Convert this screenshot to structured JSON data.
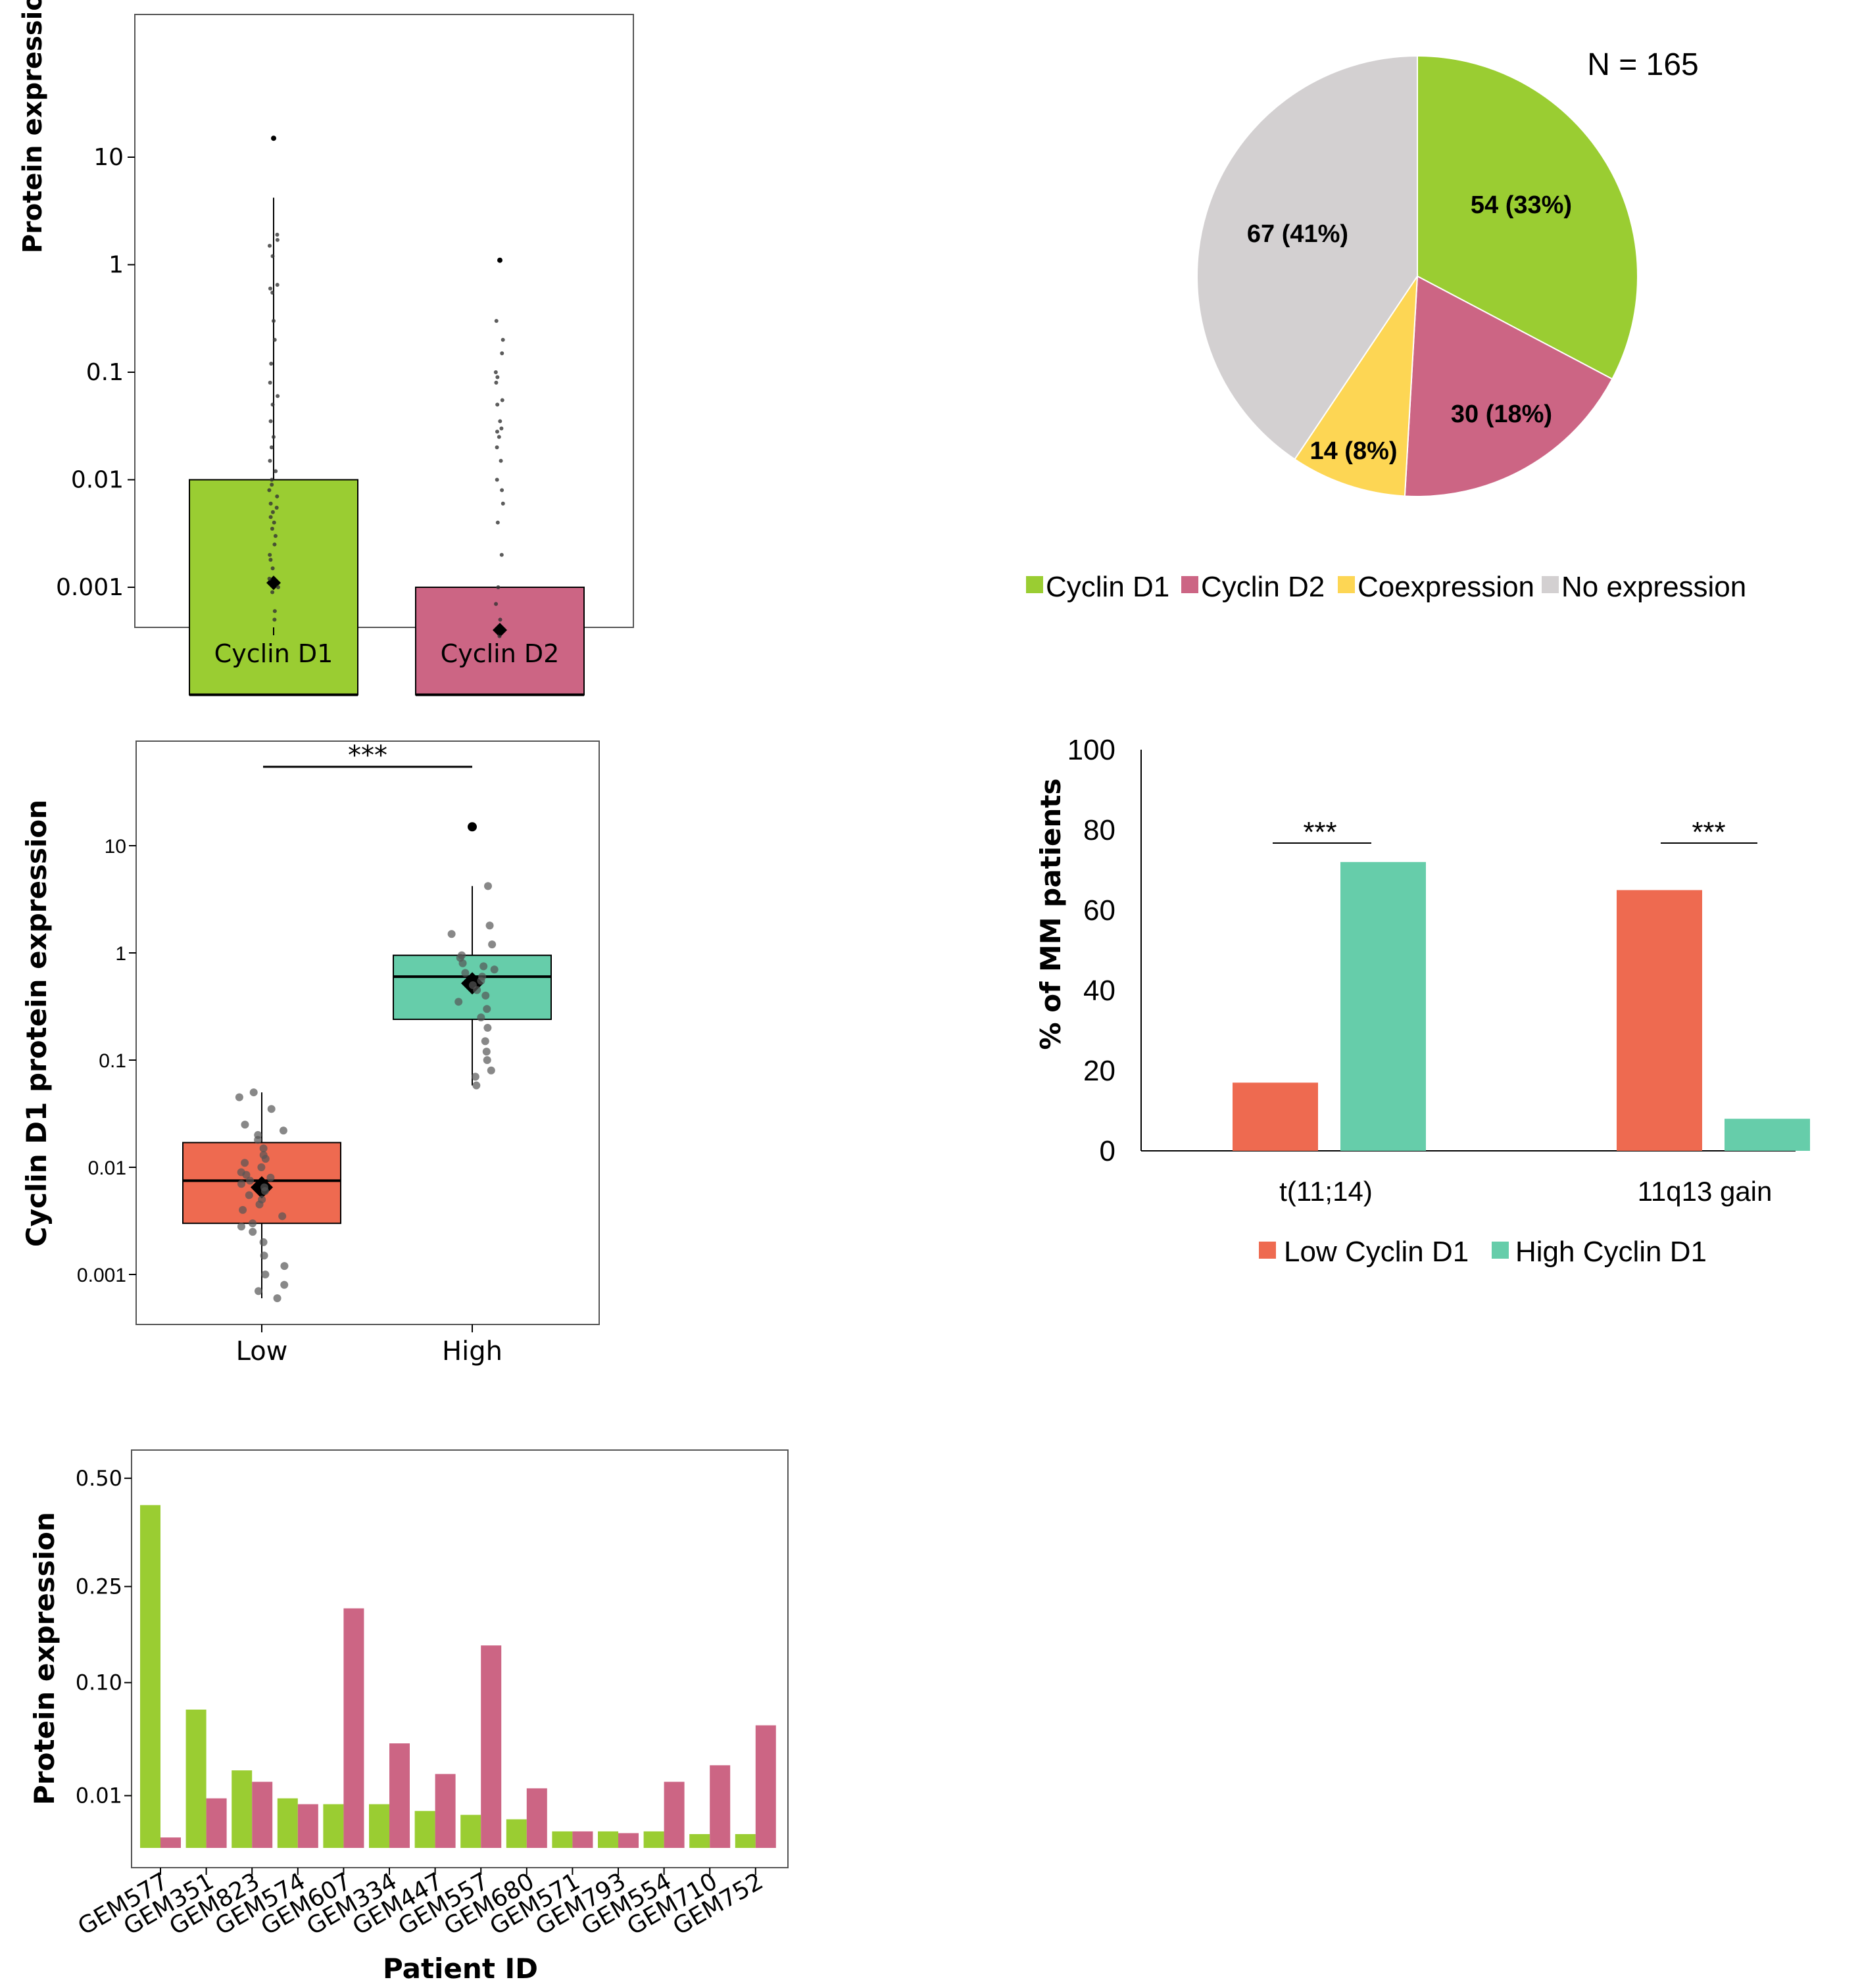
{
  "colors": {
    "green": "#9ACD32",
    "pink": "#CC6584",
    "yellow": "#FDD654",
    "grey": "#D3D0D1",
    "coral": "#EE6A50",
    "teal": "#66CDAA",
    "black": "#000000"
  },
  "chart_data": [
    {
      "id": "panel_a",
      "type": "boxplot",
      "ylabel": "Protein expression",
      "yscale": "log",
      "ylim": [
        0.0001,
        20
      ],
      "yticks": [
        {
          "v": 10,
          "label": "10"
        },
        {
          "v": 1,
          "label": "1"
        },
        {
          "v": 0.1,
          "label": "0.1"
        },
        {
          "v": 0.01,
          "label": "0.01"
        },
        {
          "v": 0.001,
          "label": "0.001"
        }
      ],
      "categories": [
        "Cyclin D1",
        "Cyclin D2"
      ],
      "boxes": [
        {
          "name": "Cyclin D1",
          "q1": 0.0001,
          "median": 0.0001,
          "q3": 0.01,
          "mean": 0.0011,
          "whisker_high": 4.2,
          "outliers": [
            15
          ]
        },
        {
          "name": "Cyclin D2",
          "q1": 0.0001,
          "median": 0.0001,
          "q3": 0.001,
          "mean": 0.0004,
          "whisker_high": 0.001,
          "outliers": [
            1.1
          ]
        }
      ],
      "points": [
        [
          1.9,
          1.7,
          1.5,
          1.2,
          0.65,
          0.6,
          0.55,
          0.3,
          0.2,
          0.12,
          0.08,
          0.06,
          0.05,
          0.035,
          0.025,
          0.02,
          0.015,
          0.012,
          0.01,
          0.009,
          0.008,
          0.007,
          0.006,
          0.0055,
          0.005,
          0.0045,
          0.004,
          0.0035,
          0.003,
          0.0025,
          0.002,
          0.0018,
          0.0015,
          0.0012,
          0.001,
          0.0009,
          0.0006,
          0.0005
        ],
        [
          0.3,
          0.2,
          0.15,
          0.1,
          0.09,
          0.08,
          0.055,
          0.05,
          0.035,
          0.03,
          0.028,
          0.025,
          0.02,
          0.015,
          0.01,
          0.008,
          0.006,
          0.004,
          0.002,
          0.001,
          0.0007,
          0.0005,
          0.00035
        ]
      ]
    },
    {
      "id": "panel_b",
      "type": "pie",
      "title": "N = 165",
      "slices": [
        {
          "name": "Cyclin D1",
          "value": 54,
          "label": "54 (33%)",
          "color": "#9ACD32"
        },
        {
          "name": "Cyclin D2",
          "value": 30,
          "label": "30 (18%)",
          "color": "#CC6584"
        },
        {
          "name": "Coexpression",
          "value": 14,
          "label": "14 (8%)",
          "color": "#FDD654"
        },
        {
          "name": "No expression",
          "value": 67,
          "label": "67 (41%)",
          "color": "#D3D0D1"
        }
      ],
      "legend": [
        "Cyclin D1",
        "Cyclin D2",
        "Coexpression",
        "No expression"
      ]
    },
    {
      "id": "panel_c",
      "type": "boxplot",
      "ylabel": "Cyclin D1 protein expression",
      "yscale": "log",
      "ylim": [
        0.0005,
        100
      ],
      "yticks": [
        {
          "v": 10,
          "label": "10"
        },
        {
          "v": 1,
          "label": "1"
        },
        {
          "v": 0.1,
          "label": "0.1"
        },
        {
          "v": 0.01,
          "label": "0.01"
        },
        {
          "v": 0.001,
          "label": "0.001"
        }
      ],
      "categories": [
        "Low",
        "High"
      ],
      "significance": "***",
      "boxes": [
        {
          "name": "Low",
          "q1": 0.003,
          "median": 0.0075,
          "q3": 0.017,
          "mean": 0.0065,
          "whisker_low": 0.0006,
          "whisker_high": 0.05,
          "outliers": [],
          "color": "#EE6A50"
        },
        {
          "name": "High",
          "q1": 0.24,
          "median": 0.6,
          "q3": 0.95,
          "mean": 0.52,
          "whisker_low": 0.058,
          "whisker_high": 4.2,
          "outliers": [
            15
          ],
          "color": "#66CDAA"
        }
      ],
      "points": [
        [
          0.05,
          0.045,
          0.035,
          0.025,
          0.022,
          0.02,
          0.018,
          0.015,
          0.013,
          0.012,
          0.011,
          0.01,
          0.009,
          0.0085,
          0.008,
          0.0075,
          0.007,
          0.0065,
          0.006,
          0.0055,
          0.005,
          0.0045,
          0.004,
          0.0035,
          0.003,
          0.0028,
          0.0025,
          0.002,
          0.0015,
          0.0012,
          0.001,
          0.0008,
          0.0007,
          0.0006
        ],
        [
          4.2,
          1.8,
          1.5,
          1.2,
          0.95,
          0.9,
          0.8,
          0.75,
          0.7,
          0.65,
          0.6,
          0.55,
          0.5,
          0.45,
          0.4,
          0.35,
          0.3,
          0.25,
          0.2,
          0.15,
          0.12,
          0.1,
          0.08,
          0.07,
          0.058
        ]
      ]
    },
    {
      "id": "panel_d",
      "type": "bar",
      "ylabel": "% of MM patients",
      "ylim": [
        0,
        100
      ],
      "yticks": [
        0,
        20,
        40,
        60,
        80,
        100
      ],
      "categories": [
        "t(11;14)",
        "11q13 gain"
      ],
      "series": [
        {
          "name": "Low Cyclin D1",
          "values": [
            17,
            65
          ],
          "color": "#EE6A50"
        },
        {
          "name": "High Cyclin D1",
          "values": [
            72,
            8
          ],
          "color": "#66CDAA"
        }
      ],
      "significance": [
        "***",
        "***"
      ]
    },
    {
      "id": "panel_e",
      "type": "bar",
      "xlabel": "Patient ID",
      "ylabel": "Protein expression",
      "yscale": "sqrt",
      "ylim": [
        0,
        0.6
      ],
      "yticks": [
        {
          "v": 0.5,
          "label": "0.50"
        },
        {
          "v": 0.25,
          "label": "0.25"
        },
        {
          "v": 0.1,
          "label": "0.10"
        },
        {
          "v": 0.01,
          "label": "0.01"
        }
      ],
      "categories": [
        "GEM577",
        "GEM351",
        "GEM823",
        "GEM574",
        "GEM607",
        "GEM334",
        "GEM447",
        "GEM557",
        "GEM680",
        "GEM571",
        "GEM793",
        "GEM554",
        "GEM710",
        "GEM752"
      ],
      "series": [
        {
          "name": "Cyclin D1",
          "values": [
            0.43,
            0.07,
            0.022,
            0.009,
            0.007,
            0.007,
            0.005,
            0.004,
            0.003,
            0.001,
            0.001,
            0.001,
            0.0007,
            0.0007
          ],
          "color": "#9ACD32"
        },
        {
          "name": "Cyclin D2",
          "values": [
            0.0004,
            0.009,
            0.016,
            0.007,
            0.21,
            0.04,
            0.02,
            0.15,
            0.013,
            0.001,
            0.0008,
            0.016,
            0.025,
            0.055
          ],
          "color": "#CC6584"
        }
      ]
    }
  ]
}
